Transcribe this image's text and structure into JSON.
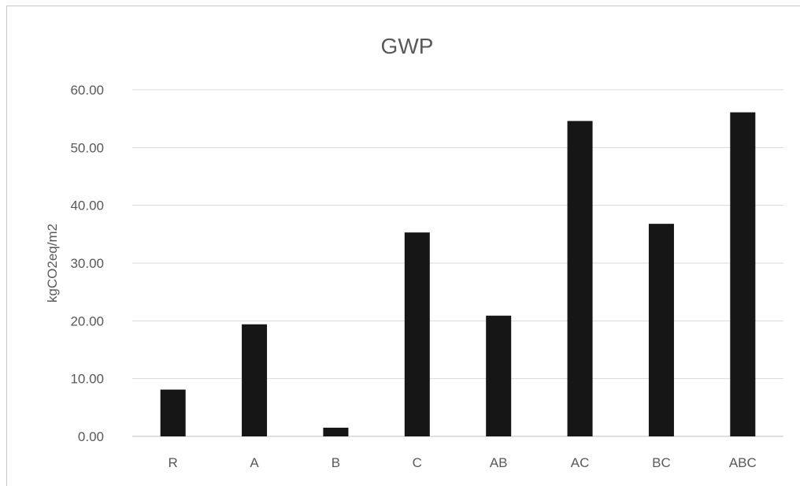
{
  "chart_data": {
    "type": "bar",
    "title": "GWP",
    "xlabel": "",
    "ylabel": "kgCO2eq/m2",
    "categories": [
      "R",
      "A",
      "B",
      "C",
      "AB",
      "AC",
      "BC",
      "ABC"
    ],
    "values": [
      8.1,
      19.4,
      1.5,
      35.3,
      20.9,
      54.6,
      36.8,
      56.1
    ],
    "ylim": [
      0,
      60
    ],
    "yticks": [
      "0.00",
      "10.00",
      "20.00",
      "30.00",
      "40.00",
      "50.00",
      "60.00"
    ],
    "grid": true,
    "legend": "none",
    "colors": {
      "bar": "#161616",
      "grid": "#d9d9d9",
      "text": "#595959",
      "baseline": "#bfbfbf"
    }
  }
}
